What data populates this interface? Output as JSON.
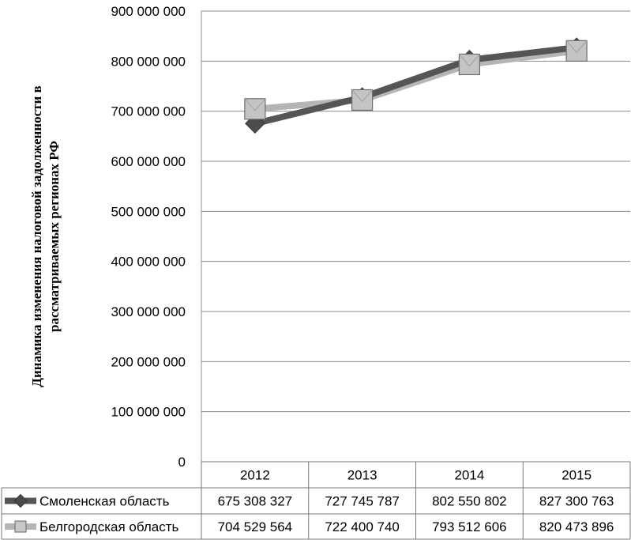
{
  "chart_data": {
    "type": "line",
    "ylabel_lines": [
      "Динамика изменения налоговой задолженности в",
      "рассматриваемых регионах РФ"
    ],
    "ylim": [
      0,
      900000000
    ],
    "yticks": [
      0,
      100000000,
      200000000,
      300000000,
      400000000,
      500000000,
      600000000,
      700000000,
      800000000,
      900000000
    ],
    "ytick_labels": [
      "0",
      "100 000 000",
      "200 000 000",
      "300 000 000",
      "400 000 000",
      "500 000 000",
      "600 000 000",
      "700 000 000",
      "800 000 000",
      "900 000 000"
    ],
    "grid": true,
    "legend": "data-table",
    "categories": [
      "2012",
      "2013",
      "2014",
      "2015"
    ],
    "series": [
      {
        "name": "Смоленская область",
        "values": [
          675308327,
          727745787,
          802550802,
          827300763
        ],
        "display": [
          "675 308 327",
          "727 745 787",
          "802 550 802",
          "827 300 763"
        ],
        "color": "#555555",
        "marker": "diamond"
      },
      {
        "name": "Белгородская область",
        "values": [
          704529564,
          722400740,
          793512606,
          820473896
        ],
        "display": [
          "704 529 564",
          "722 400 740",
          "793 512 606",
          "820 473 896"
        ],
        "color": "#b5b5b5",
        "marker": "square"
      }
    ]
  }
}
